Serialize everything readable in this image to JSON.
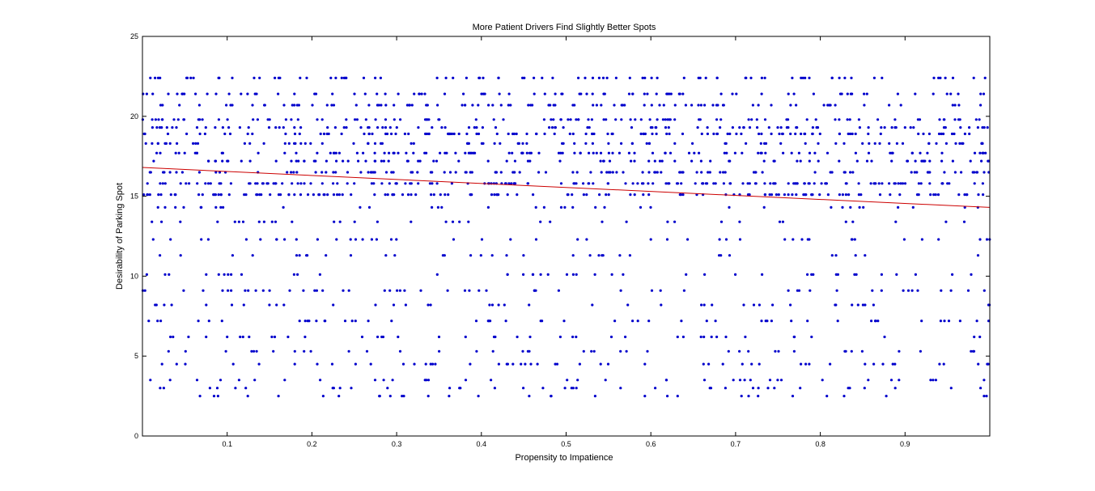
{
  "chart_data": {
    "type": "scatter",
    "title": "More Patient Drivers Find Slightly Better Spots",
    "xlabel": "Propensity to Impatience",
    "ylabel": "Desirability of Parking Spot",
    "xlim": [
      0,
      1
    ],
    "ylim": [
      0,
      25
    ],
    "xticks": [
      0.1,
      0.2,
      0.3,
      0.4,
      0.5,
      0.6,
      0.7,
      0.8,
      0.9
    ],
    "xtick_labels": [
      "0.1",
      "0.2",
      "0.3",
      "0.4",
      "0.5",
      "0.6",
      "0.7",
      "0.8",
      "0.9"
    ],
    "yticks": [
      0,
      5,
      10,
      15,
      20,
      25
    ],
    "ytick_labels": [
      "0",
      "5",
      "10",
      "15",
      "20",
      "25"
    ],
    "grid": false,
    "legend": "none",
    "series": [
      {
        "kind": "scatter",
        "color": "#0000cc",
        "marker": "dot",
        "approx_point_count": 1800,
        "y_levels": [
          2.5,
          3.0,
          3.5,
          4.5,
          5.3,
          6.2,
          7.2,
          8.2,
          9.1,
          10.1,
          11.3,
          12.3,
          13.4,
          14.3,
          15.1,
          15.8,
          16.5,
          17.2,
          17.7,
          18.3,
          18.9,
          19.3,
          19.8,
          20.7,
          21.4,
          22.4
        ]
      },
      {
        "kind": "line",
        "color": "#cc0000",
        "x": [
          0,
          1
        ],
        "y": [
          16.8,
          14.3
        ]
      }
    ]
  }
}
